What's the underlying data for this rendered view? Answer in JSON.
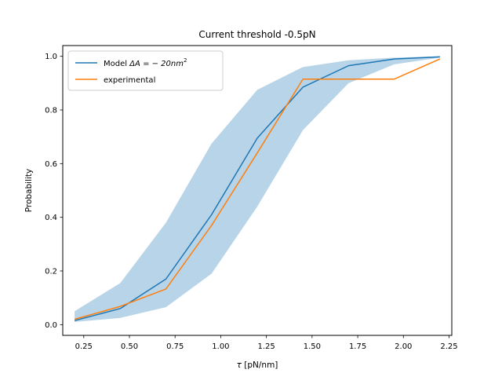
{
  "chart_data": {
    "type": "line",
    "title": "Current threshold -0.5pN",
    "xlabel_symbol": "τ",
    "xlabel_unit": " [pN/nm]",
    "ylabel": "Probability",
    "xlim": [
      0.135,
      2.265
    ],
    "ylim": [
      -0.04,
      1.04
    ],
    "xticks": [
      0.25,
      0.5,
      0.75,
      1.0,
      1.25,
      1.5,
      1.75,
      2.0,
      2.25
    ],
    "xtick_labels": [
      "0.25",
      "0.50",
      "0.75",
      "1.00",
      "1.25",
      "1.50",
      "1.75",
      "2.00",
      "2.25"
    ],
    "yticks": [
      0.0,
      0.2,
      0.4,
      0.6,
      0.8,
      1.0
    ],
    "ytick_labels": [
      "0.0",
      "0.2",
      "0.4",
      "0.6",
      "0.8",
      "1.0"
    ],
    "grid": false,
    "legend_position": "upper-left",
    "x": [
      0.2,
      0.45,
      0.7,
      0.95,
      1.2,
      1.45,
      1.7,
      1.95,
      2.2
    ],
    "band": {
      "color": "#b8d4e8",
      "lower": [
        0.01,
        0.025,
        0.065,
        0.19,
        0.44,
        0.725,
        0.9,
        0.97,
        0.995
      ],
      "upper": [
        0.05,
        0.155,
        0.38,
        0.675,
        0.875,
        0.96,
        0.985,
        0.995,
        1.0
      ]
    },
    "series": [
      {
        "name_prefix": "Model ",
        "name_math": "ΔA = − 20nm",
        "name_sup": "2",
        "color": "#1f77b4",
        "values": [
          0.015,
          0.06,
          0.17,
          0.41,
          0.695,
          0.885,
          0.965,
          0.99,
          0.998
        ]
      },
      {
        "name": "experimental",
        "color": "#ff7f0e",
        "values": [
          0.02,
          0.068,
          0.133,
          0.37,
          0.64,
          0.915,
          0.915,
          0.915,
          0.99
        ]
      }
    ]
  }
}
